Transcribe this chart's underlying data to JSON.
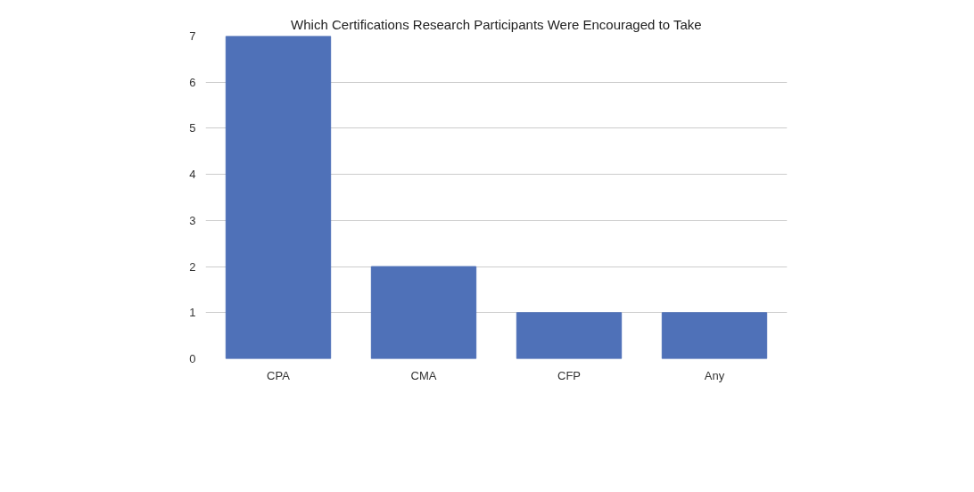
{
  "chart_data": {
    "type": "bar",
    "title": "Which Certifications Research Participants Were Encouraged to Take",
    "categories": [
      "CPA",
      "CMA",
      "CFP",
      "Any"
    ],
    "values": [
      7,
      2,
      1,
      1
    ],
    "color": "#4f71b8",
    "ylim": [
      0,
      7
    ],
    "yticks": [
      0,
      1,
      2,
      3,
      4,
      5,
      6,
      7
    ],
    "grid": "y"
  }
}
